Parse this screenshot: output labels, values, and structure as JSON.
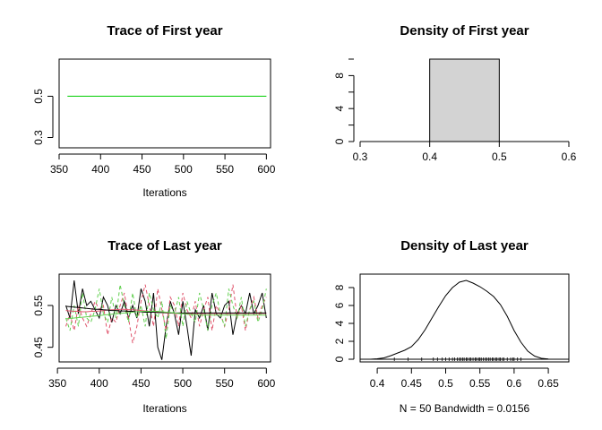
{
  "chart_data": [
    {
      "type": "line",
      "title": "Trace of First year",
      "xlabel": "Iterations",
      "ylabel": "",
      "xlim": [
        350,
        605
      ],
      "ylim": [
        0.25,
        0.68
      ],
      "xticks": [
        350,
        400,
        450,
        500,
        550,
        600
      ],
      "yticks": [
        0.3,
        0.5
      ],
      "x": [
        360,
        600
      ],
      "series": [
        {
          "color": "#00CD00",
          "values": [
            0.5,
            0.5
          ]
        }
      ]
    },
    {
      "type": "bar",
      "title": "Density of First year",
      "xlabel": "",
      "ylabel": "",
      "xlim": [
        0.3,
        0.6
      ],
      "ylim": [
        0,
        10
      ],
      "xticks": [
        0.3,
        0.4,
        0.5,
        0.6
      ],
      "yticks": [
        0,
        4,
        8
      ],
      "bins": [
        [
          0.3,
          0.4
        ],
        [
          0.4,
          0.5
        ],
        [
          0.5,
          0.6
        ]
      ],
      "values": [
        0,
        10,
        0
      ],
      "fill": "#D3D3D3"
    },
    {
      "type": "line",
      "title": "Trace of Last year",
      "xlabel": "Iterations",
      "ylabel": "",
      "xlim": [
        352,
        605
      ],
      "ylim": [
        0.415,
        0.625
      ],
      "xticks": [
        350,
        400,
        450,
        500,
        550,
        600
      ],
      "yticks": [
        0.45,
        0.55
      ],
      "x": [
        360,
        365,
        370,
        375,
        380,
        385,
        390,
        395,
        400,
        405,
        410,
        415,
        420,
        425,
        430,
        435,
        440,
        445,
        450,
        455,
        460,
        465,
        470,
        475,
        480,
        485,
        490,
        495,
        500,
        505,
        510,
        515,
        520,
        525,
        530,
        535,
        540,
        545,
        550,
        555,
        560,
        565,
        570,
        575,
        580,
        585,
        590,
        595,
        600
      ],
      "series": [
        {
          "color": "#000000",
          "style": "solid",
          "values": [
            0.55,
            0.52,
            0.61,
            0.53,
            0.59,
            0.55,
            0.56,
            0.54,
            0.52,
            0.57,
            0.55,
            0.51,
            0.55,
            0.53,
            0.56,
            0.52,
            0.55,
            0.52,
            0.59,
            0.56,
            0.5,
            0.58,
            0.45,
            0.42,
            0.5,
            0.56,
            0.53,
            0.48,
            0.56,
            0.5,
            0.43,
            0.54,
            0.52,
            0.55,
            0.49,
            0.58,
            0.53,
            0.52,
            0.55,
            0.56,
            0.48,
            0.53,
            0.55,
            0.53,
            0.58,
            0.53,
            0.55,
            0.58,
            0.52
          ]
        },
        {
          "color": "#DF536B",
          "style": "dashed",
          "values": [
            0.5,
            0.53,
            0.49,
            0.55,
            0.52,
            0.5,
            0.53,
            0.56,
            0.54,
            0.55,
            0.48,
            0.52,
            0.51,
            0.55,
            0.58,
            0.52,
            0.46,
            0.5,
            0.56,
            0.6,
            0.55,
            0.5,
            0.59,
            0.54,
            0.49,
            0.57,
            0.55,
            0.5,
            0.58,
            0.54,
            0.52,
            0.56,
            0.5,
            0.54,
            0.57,
            0.49,
            0.55,
            0.53,
            0.5,
            0.54,
            0.6,
            0.52,
            0.55,
            0.49,
            0.54,
            0.57,
            0.52,
            0.55,
            0.57
          ]
        },
        {
          "color": "#61D04F",
          "style": "dashed",
          "values": [
            0.52,
            0.49,
            0.55,
            0.5,
            0.58,
            0.52,
            0.51,
            0.54,
            0.59,
            0.53,
            0.51,
            0.57,
            0.52,
            0.6,
            0.55,
            0.51,
            0.58,
            0.52,
            0.55,
            0.5,
            0.58,
            0.54,
            0.52,
            0.56,
            0.47,
            0.55,
            0.53,
            0.57,
            0.5,
            0.56,
            0.53,
            0.51,
            0.58,
            0.54,
            0.49,
            0.55,
            0.58,
            0.53,
            0.5,
            0.59,
            0.55,
            0.52,
            0.57,
            0.5,
            0.54,
            0.56,
            0.51,
            0.54,
            0.59
          ]
        },
        {
          "color": "#DF536B",
          "style": "solid",
          "values": [
            0.538,
            0.537,
            0.536,
            0.536,
            0.535,
            0.535,
            0.536,
            0.536,
            0.537,
            0.538,
            0.539,
            0.54,
            0.54,
            0.541,
            0.541,
            0.54,
            0.54,
            0.539,
            0.538,
            0.537,
            0.536,
            0.535,
            0.534,
            0.533,
            0.532,
            0.532,
            0.531,
            0.531,
            0.531,
            0.531,
            0.531,
            0.531,
            0.531,
            0.531,
            0.531,
            0.531,
            0.531,
            0.531,
            0.531,
            0.531,
            0.531,
            0.531,
            0.531,
            0.531,
            0.531,
            0.531,
            0.531,
            0.531,
            0.531
          ]
        },
        {
          "color": "#000000",
          "style": "solid",
          "values": [
            0.548,
            0.547,
            0.546,
            0.545,
            0.544,
            0.543,
            0.542,
            0.541,
            0.541,
            0.54,
            0.539,
            0.538,
            0.538,
            0.537,
            0.537,
            0.536,
            0.536,
            0.535,
            0.535,
            0.534,
            0.534,
            0.534,
            0.533,
            0.533,
            0.533,
            0.532,
            0.532,
            0.532,
            0.532,
            0.532,
            0.532,
            0.532,
            0.532,
            0.532,
            0.532,
            0.532,
            0.532,
            0.532,
            0.532,
            0.532,
            0.532,
            0.532,
            0.532,
            0.532,
            0.532,
            0.532,
            0.532,
            0.532,
            0.532
          ]
        },
        {
          "color": "#61D04F",
          "style": "solid",
          "values": [
            0.518,
            0.519,
            0.52,
            0.521,
            0.522,
            0.523,
            0.524,
            0.525,
            0.526,
            0.527,
            0.528,
            0.529,
            0.53,
            0.531,
            0.532,
            0.533,
            0.534,
            0.535,
            0.536,
            0.536,
            0.536,
            0.536,
            0.536,
            0.535,
            0.534,
            0.533,
            0.532,
            0.531,
            0.53,
            0.529,
            0.528,
            0.528,
            0.527,
            0.527,
            0.527,
            0.527,
            0.527,
            0.527,
            0.527,
            0.527,
            0.527,
            0.527,
            0.527,
            0.527,
            0.527,
            0.527,
            0.527,
            0.527,
            0.527
          ]
        }
      ]
    },
    {
      "type": "area",
      "title": "Density of Last year",
      "xlabel": "N = 50   Bandwidth = 0.0156",
      "ylabel": "",
      "xlim": [
        0.375,
        0.68
      ],
      "ylim": [
        -0.3,
        9.5
      ],
      "xticks": [
        0.4,
        0.45,
        0.5,
        0.55,
        0.6,
        0.65
      ],
      "yticks": [
        0,
        2,
        4,
        6,
        8
      ],
      "x": [
        0.39,
        0.4,
        0.41,
        0.42,
        0.43,
        0.44,
        0.45,
        0.46,
        0.47,
        0.48,
        0.49,
        0.5,
        0.51,
        0.52,
        0.53,
        0.54,
        0.55,
        0.56,
        0.57,
        0.58,
        0.59,
        0.6,
        0.61,
        0.62,
        0.63,
        0.64,
        0.65
      ],
      "values": [
        0,
        0.05,
        0.15,
        0.4,
        0.7,
        1.0,
        1.4,
        2.2,
        3.3,
        4.6,
        5.9,
        7.1,
        8.0,
        8.6,
        8.8,
        8.5,
        8.1,
        7.6,
        7.0,
        6.1,
        4.8,
        3.2,
        1.9,
        0.9,
        0.35,
        0.1,
        0.02
      ],
      "rug": [
        0.425,
        0.445,
        0.465,
        0.482,
        0.488,
        0.495,
        0.5,
        0.505,
        0.51,
        0.513,
        0.517,
        0.52,
        0.522,
        0.525,
        0.527,
        0.53,
        0.532,
        0.535,
        0.537,
        0.54,
        0.543,
        0.545,
        0.548,
        0.55,
        0.552,
        0.555,
        0.558,
        0.56,
        0.563,
        0.565,
        0.568,
        0.57,
        0.573,
        0.575,
        0.578,
        0.58,
        0.583,
        0.585,
        0.59,
        0.595,
        0.598,
        0.6,
        0.605,
        0.61
      ]
    }
  ]
}
